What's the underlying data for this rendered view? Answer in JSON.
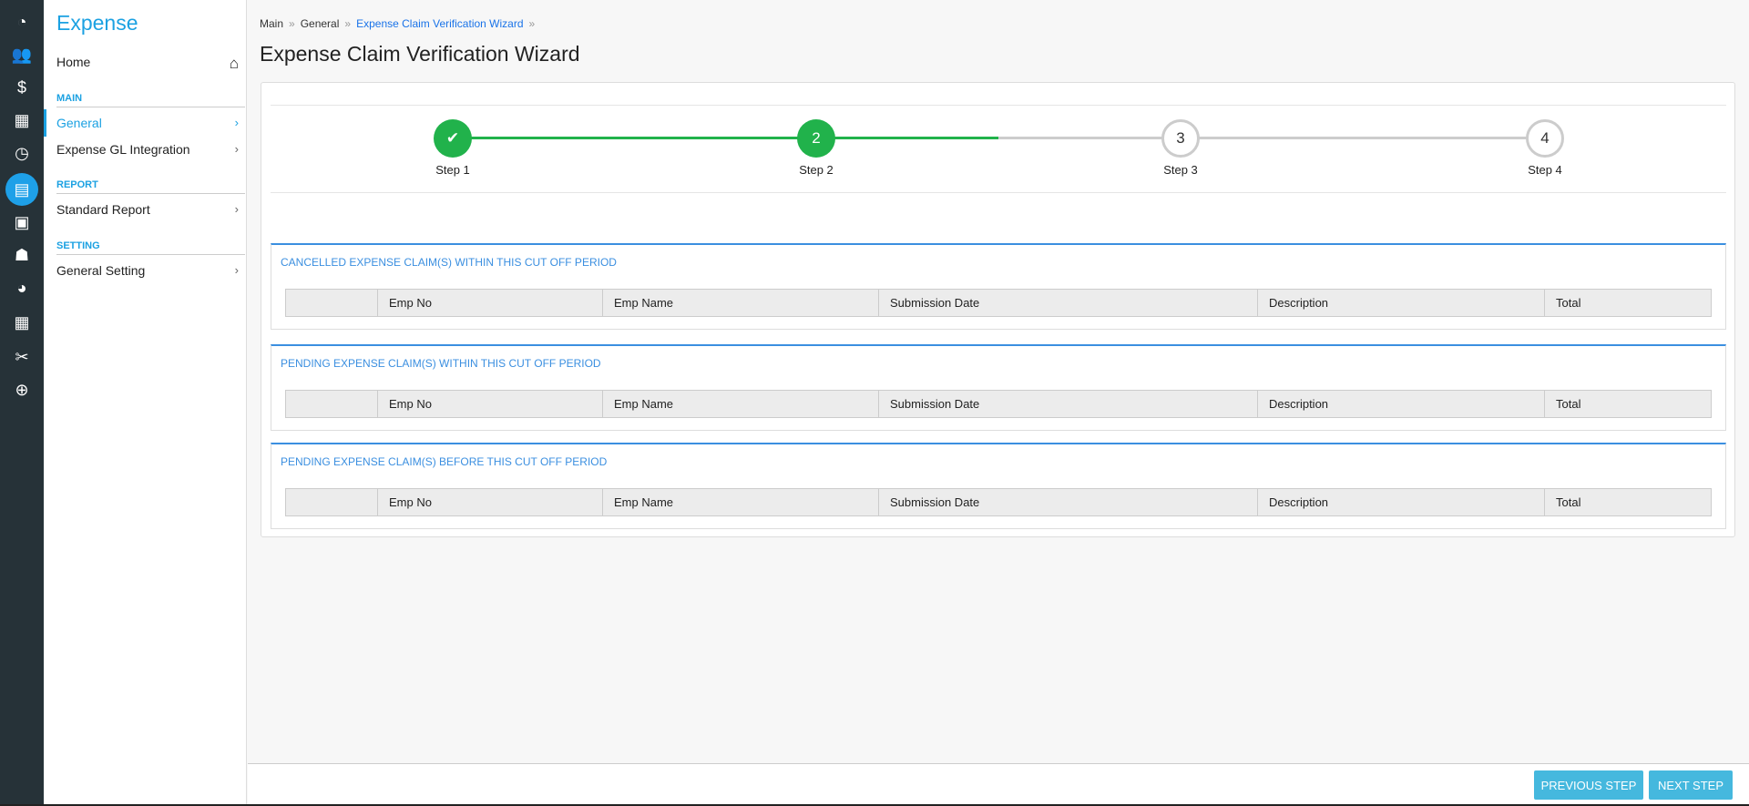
{
  "iconbar": {
    "icons": [
      "dashboard-icon",
      "employee-alert-icon",
      "payroll-icon",
      "calendar-icon",
      "clock-icon",
      "expense-icon",
      "schedule-icon",
      "user-icon",
      "time-report-icon",
      "grid-icon",
      "tools-icon",
      "upload-icon"
    ],
    "active": "expense-icon"
  },
  "sidebar": {
    "brand": "Expense",
    "home": "Home",
    "sections": [
      {
        "label": "MAIN",
        "items": [
          {
            "label": "General",
            "active": true
          },
          {
            "label": "Expense GL Integration"
          }
        ]
      },
      {
        "label": "REPORT",
        "items": [
          {
            "label": "Standard Report"
          }
        ]
      },
      {
        "label": "SETTING",
        "items": [
          {
            "label": "General Setting"
          }
        ]
      }
    ]
  },
  "breadcrumb": [
    "Main",
    "General",
    "Expense Claim Verification Wizard"
  ],
  "page_title": "Expense Claim Verification Wizard",
  "wizard": {
    "current_step": 2,
    "steps": [
      {
        "label": "Step 1",
        "marker": "✔",
        "status": "complete"
      },
      {
        "label": "Step 2",
        "marker": "2",
        "status": "current"
      },
      {
        "label": "Step 3",
        "marker": "3",
        "status": "pending"
      },
      {
        "label": "Step 4",
        "marker": "4",
        "status": "pending"
      }
    ]
  },
  "columns": [
    "",
    "Emp No",
    "Emp Name",
    "Submission Date",
    "Description",
    "Total"
  ],
  "panels": [
    {
      "title": "CANCELLED EXPENSE CLAIM(S) WITHIN THIS CUT OFF PERIOD",
      "rows": []
    },
    {
      "title": "PENDING EXPENSE CLAIM(S) WITHIN THIS CUT OFF PERIOD",
      "rows": []
    },
    {
      "title": "PENDING EXPENSE CLAIM(S) BEFORE THIS CUT OFF PERIOD",
      "rows": []
    }
  ],
  "footer": {
    "previous": "PREVIOUS STEP",
    "next": "NEXT STEP"
  },
  "colors": {
    "accent": "#1ba1e2",
    "step_complete": "#21b24b",
    "button": "#45b8de",
    "panel_border": "#3b8fe0"
  }
}
